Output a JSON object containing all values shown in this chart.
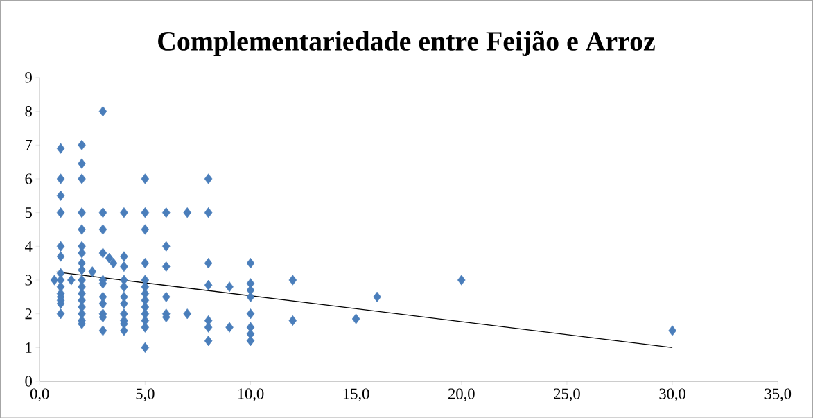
{
  "chart_data": {
    "type": "scatter",
    "title": "Complementariedade entre Feijão e Arroz",
    "xlim": [
      0,
      35
    ],
    "ylim": [
      0,
      9
    ],
    "xticks": [
      {
        "value": 0,
        "label": "0,0"
      },
      {
        "value": 5,
        "label": "5,0"
      },
      {
        "value": 10,
        "label": "10,0"
      },
      {
        "value": 15,
        "label": "15,0"
      },
      {
        "value": 20,
        "label": "20,0"
      },
      {
        "value": 25,
        "label": "25,0"
      },
      {
        "value": 30,
        "label": "30,0"
      },
      {
        "value": 35,
        "label": "35,0"
      }
    ],
    "yticks": [
      0,
      1,
      2,
      3,
      4,
      5,
      6,
      7,
      8,
      9
    ],
    "grid": false,
    "marker": "diamond",
    "series": [
      {
        "color": "#4a7ebb",
        "x": [
          0.7,
          1,
          1,
          1,
          1,
          1,
          1,
          1,
          1,
          1,
          1,
          1,
          1,
          1,
          1,
          1.5,
          2,
          2,
          2,
          2,
          2,
          2,
          2,
          2,
          2,
          2,
          2,
          2,
          2,
          2,
          2,
          2,
          2,
          2.5,
          3,
          3,
          3,
          3,
          3,
          3,
          3,
          3,
          3,
          3,
          3,
          3.3,
          3.5,
          4,
          4,
          4,
          4,
          4,
          4,
          4,
          4,
          4,
          4,
          4,
          5,
          5,
          5,
          5,
          5,
          5,
          5,
          5,
          5,
          5,
          5,
          5,
          5,
          6,
          6,
          6,
          6,
          6,
          6,
          7,
          7,
          8,
          8,
          8,
          8,
          8,
          8,
          8,
          9,
          9,
          10,
          10,
          10,
          10,
          10,
          10,
          10,
          10,
          12,
          12,
          15,
          16,
          20,
          30
        ],
        "values": [
          3.0,
          6.9,
          6,
          5.5,
          5,
          4,
          3.7,
          3.2,
          3.0,
          2.8,
          2.6,
          2.5,
          2.4,
          2.3,
          2.0,
          3.0,
          7,
          6.45,
          6,
          5,
          4.5,
          4,
          3.8,
          3.5,
          3.3,
          3.0,
          2.8,
          2.6,
          2.4,
          2.2,
          2.0,
          1.8,
          1.7,
          3.25,
          8,
          5,
          4.5,
          3.8,
          3.0,
          2.9,
          2.5,
          2.3,
          2.0,
          1.9,
          1.5,
          3.65,
          3.5,
          5,
          3.7,
          3.4,
          3.0,
          2.8,
          2.5,
          2.3,
          2.0,
          1.8,
          1.7,
          1.5,
          6,
          5,
          4.5,
          3.5,
          3.0,
          2.8,
          2.6,
          2.4,
          2.2,
          2.0,
          1.8,
          1.6,
          1.0,
          5,
          4,
          3.4,
          2.5,
          2.0,
          1.9,
          5,
          2.0,
          6,
          5,
          3.5,
          2.85,
          1.8,
          1.6,
          1.2,
          2.8,
          1.6,
          3.5,
          2.9,
          2.7,
          2.5,
          2.0,
          1.6,
          1.4,
          1.2,
          3.0,
          1.8,
          1.85,
          2.5,
          3.0,
          1.5
        ]
      },
      {
        "type": "line",
        "marker": "none",
        "color": "#000000",
        "x": [
          0.8,
          30
        ],
        "values": [
          3.24,
          1.0
        ]
      }
    ]
  }
}
